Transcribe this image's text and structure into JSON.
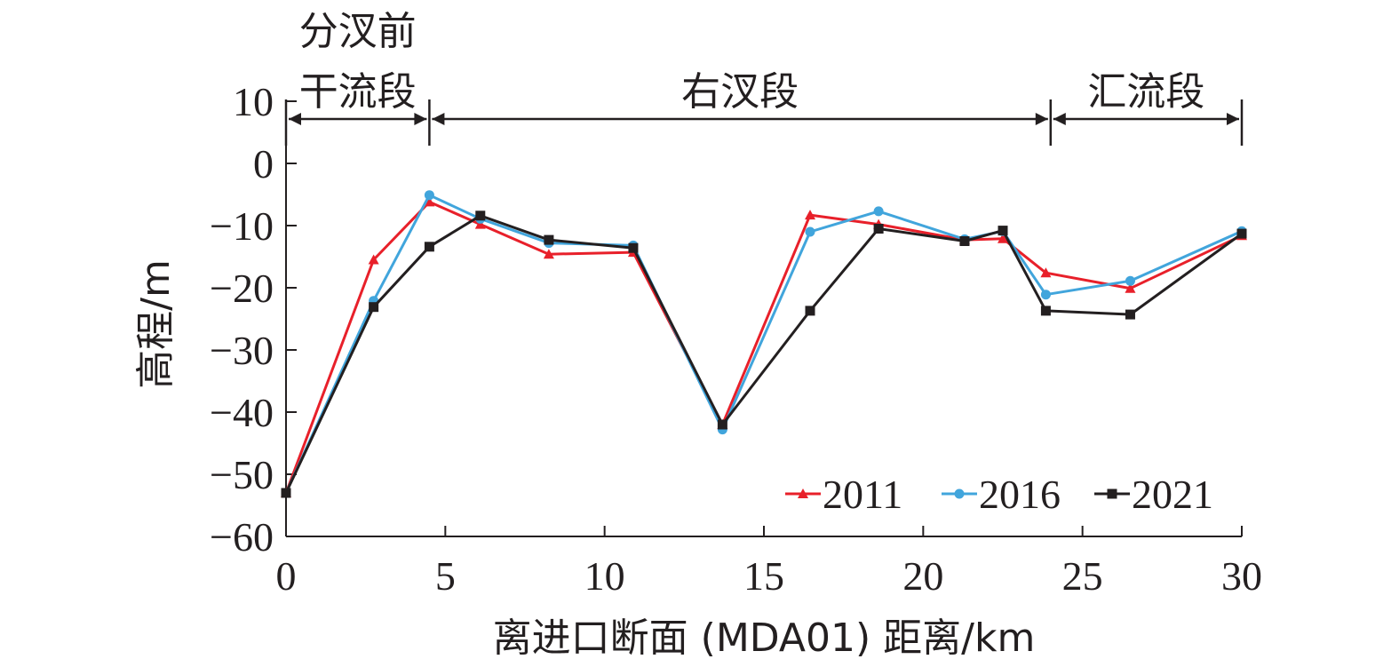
{
  "chart_data": {
    "type": "line",
    "xlabel": "离进口断面 (MDA01) 距离/km",
    "ylabel": "高程/m",
    "xlim": [
      0,
      30
    ],
    "ylim": [
      -60,
      10
    ],
    "xticks": [
      0,
      5,
      10,
      15,
      20,
      25,
      30
    ],
    "yticks": [
      -60,
      -50,
      -40,
      -30,
      -20,
      -10,
      0,
      10
    ],
    "grid": false,
    "legend_position": "bottom-right",
    "segments": [
      {
        "label_lines": [
          "分汊前",
          "干流段"
        ],
        "start": 0,
        "end": 4.5
      },
      {
        "label_lines": [
          "右汊段"
        ],
        "start": 4.5,
        "end": 24
      },
      {
        "label_lines": [
          "汇流段"
        ],
        "start": 24,
        "end": 30
      }
    ],
    "series": [
      {
        "name": "2011",
        "color": "#e8202a",
        "marker": "triangle",
        "x": [
          0,
          2.75,
          4.5,
          6.1,
          8.25,
          10.9,
          13.7,
          16.45,
          18.6,
          21.3,
          22.5,
          23.85,
          26.5,
          30
        ],
        "y": [
          -53,
          -15.5,
          -6.2,
          -9.8,
          -14.6,
          -14.3,
          -42,
          -8.3,
          -9.8,
          -12.3,
          -12.1,
          -17.6,
          -20.1,
          -11.6
        ]
      },
      {
        "name": "2016",
        "color": "#41a5dc",
        "marker": "circle",
        "x": [
          0,
          2.75,
          4.5,
          6.1,
          8.25,
          10.9,
          13.7,
          16.45,
          18.6,
          21.3,
          22.5,
          23.85,
          26.5,
          30
        ],
        "y": [
          -53,
          -22.1,
          -5.1,
          -8.9,
          -12.8,
          -13.2,
          -42.8,
          -11,
          -7.7,
          -12.2,
          -10.9,
          -21.1,
          -18.9,
          -10.9
        ]
      },
      {
        "name": "2021",
        "color": "#231f20",
        "marker": "square",
        "x": [
          0,
          2.75,
          4.5,
          6.1,
          8.25,
          10.9,
          13.7,
          16.45,
          18.6,
          21.3,
          22.5,
          23.85,
          26.5,
          30
        ],
        "y": [
          -53,
          -23.1,
          -13.4,
          -8.4,
          -12.3,
          -13.6,
          -42,
          -23.7,
          -10.5,
          -12.5,
          -10.8,
          -23.7,
          -24.3,
          -11.3
        ]
      }
    ]
  }
}
